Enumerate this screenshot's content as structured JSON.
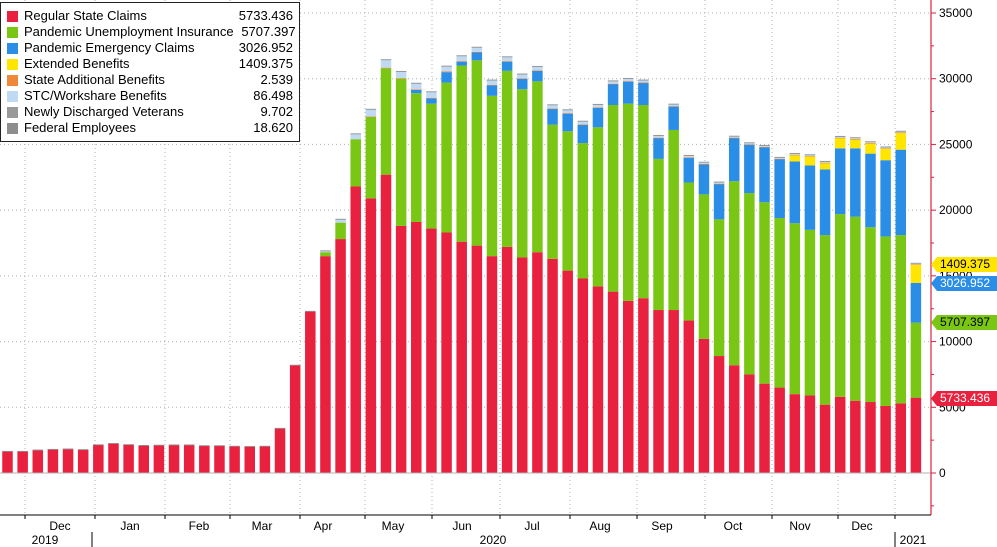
{
  "chart_data": {
    "type": "bar",
    "stacked": true,
    "title": "",
    "ylim": [
      -3000,
      35000
    ],
    "yticks": [
      0,
      5000,
      10000,
      15000,
      20000,
      25000,
      30000,
      35000
    ],
    "ytick_labels": [
      "0",
      "5000",
      "10000",
      "15000",
      "20000",
      "25000",
      "30000",
      "35000"
    ],
    "months": [
      "Dec",
      "Jan",
      "Feb",
      "Mar",
      "Apr",
      "May",
      "Jun",
      "Jul",
      "Aug",
      "Sep",
      "Oct",
      "Nov",
      "Dec"
    ],
    "years": [
      "2019",
      "2020",
      "2021"
    ],
    "series": [
      {
        "name": "Regular State Claims",
        "color": "#e8213f",
        "values": [
          1650,
          1650,
          1750,
          1800,
          1830,
          1780,
          2150,
          2250,
          2160,
          2100,
          2120,
          2140,
          2140,
          2080,
          2080,
          2040,
          2020,
          2040,
          3400,
          8200,
          12300,
          16500,
          17800,
          21800,
          20900,
          22700,
          18800,
          19100,
          18600,
          18300,
          17600,
          17300,
          16500,
          17200,
          16400,
          16800,
          16300,
          15400,
          14800,
          14200,
          13800,
          13100,
          13300,
          12400,
          12400,
          11600,
          10200,
          8900,
          8200,
          7500,
          6800,
          6500,
          6000,
          5900,
          5200,
          5800,
          5500,
          5400,
          5100,
          5300,
          5733
        ]
      },
      {
        "name": "Pandemic Unemployment Insurance",
        "color": "#7ac614",
        "values": [
          0,
          0,
          0,
          0,
          0,
          0,
          0,
          0,
          0,
          0,
          0,
          0,
          0,
          0,
          0,
          0,
          0,
          0,
          0,
          0,
          0,
          300,
          1250,
          3600,
          6200,
          8100,
          11200,
          9800,
          9500,
          11400,
          13400,
          14100,
          12200,
          13400,
          12800,
          13000,
          10200,
          10600,
          10300,
          12100,
          14200,
          15000,
          14700,
          11500,
          13700,
          10500,
          11000,
          10400,
          14000,
          13800,
          13800,
          12900,
          13000,
          12600,
          12900,
          13900,
          14000,
          13300,
          12900,
          12800,
          5707
        ]
      },
      {
        "name": "Pandemic Emergency Claims",
        "color": "#2a8ee6",
        "values": [
          0,
          0,
          0,
          0,
          0,
          0,
          0,
          0,
          0,
          0,
          0,
          0,
          0,
          0,
          0,
          0,
          0,
          0,
          0,
          0,
          0,
          0,
          0,
          0,
          0,
          0,
          0,
          250,
          400,
          800,
          300,
          600,
          800,
          700,
          800,
          800,
          1200,
          1350,
          1400,
          1500,
          1600,
          1700,
          1700,
          1600,
          1800,
          1900,
          2300,
          2700,
          3300,
          3700,
          4200,
          4500,
          4700,
          4900,
          5000,
          5000,
          5200,
          5600,
          5800,
          6500,
          3026
        ]
      },
      {
        "name": "Extended Benefits",
        "color": "#ffe500",
        "values": [
          0,
          0,
          0,
          0,
          0,
          0,
          0,
          0,
          0,
          0,
          0,
          0,
          0,
          0,
          0,
          0,
          0,
          0,
          0,
          0,
          0,
          0,
          0,
          0,
          0,
          0,
          0,
          0,
          0,
          0,
          0,
          0,
          0,
          0,
          0,
          0,
          0,
          0,
          0,
          0,
          0,
          0,
          0,
          0,
          0,
          0,
          0,
          0,
          0,
          0,
          0,
          0,
          500,
          700,
          500,
          800,
          700,
          800,
          900,
          1300,
          1409
        ]
      },
      {
        "name": "State Additional Benefits",
        "color": "#f0883a",
        "values": [
          0,
          0,
          0,
          0,
          0,
          0,
          0,
          0,
          0,
          0,
          0,
          0,
          0,
          0,
          0,
          0,
          0,
          0,
          0,
          0,
          0,
          0,
          0,
          0,
          20,
          40,
          50,
          50,
          50,
          50,
          40,
          40,
          40,
          40,
          30,
          30,
          30,
          30,
          20,
          20,
          20,
          10,
          10,
          10,
          10,
          10,
          10,
          10,
          10,
          10,
          10,
          10,
          10,
          10,
          10,
          10,
          10,
          10,
          10,
          10,
          3
        ]
      },
      {
        "name": "STC/Workshare Benefits",
        "color": "#bfdaf2",
        "values": [
          0,
          0,
          0,
          0,
          0,
          0,
          0,
          0,
          0,
          0,
          0,
          0,
          0,
          0,
          0,
          0,
          0,
          0,
          0,
          0,
          0,
          100,
          250,
          400,
          550,
          600,
          500,
          450,
          450,
          400,
          400,
          350,
          350,
          320,
          320,
          300,
          280,
          250,
          240,
          220,
          210,
          200,
          180,
          170,
          150,
          140,
          130,
          120,
          110,
          110,
          110,
          100,
          100,
          100,
          95,
          95,
          95,
          90,
          90,
          90,
          86
        ]
      },
      {
        "name": "Newly Discharged Veterans",
        "color": "#999999",
        "values": [
          10,
          10,
          10,
          10,
          10,
          10,
          10,
          10,
          10,
          10,
          10,
          10,
          10,
          10,
          10,
          10,
          10,
          10,
          10,
          15,
          15,
          15,
          15,
          15,
          15,
          15,
          15,
          15,
          15,
          15,
          15,
          15,
          15,
          15,
          15,
          15,
          15,
          15,
          15,
          15,
          15,
          15,
          15,
          15,
          15,
          15,
          15,
          15,
          15,
          15,
          15,
          15,
          15,
          15,
          15,
          15,
          15,
          15,
          15,
          15,
          10
        ]
      },
      {
        "name": "Federal Employees",
        "color": "#8e8e8e",
        "values": [
          20,
          20,
          20,
          20,
          20,
          20,
          20,
          20,
          20,
          20,
          20,
          20,
          20,
          20,
          20,
          20,
          20,
          20,
          20,
          20,
          20,
          25,
          25,
          25,
          25,
          25,
          25,
          25,
          25,
          25,
          25,
          25,
          25,
          25,
          25,
          25,
          25,
          25,
          25,
          25,
          25,
          25,
          25,
          25,
          25,
          25,
          25,
          25,
          25,
          25,
          25,
          25,
          25,
          25,
          25,
          25,
          25,
          25,
          25,
          25,
          19
        ]
      }
    ],
    "legend": [
      {
        "label": "Regular State Claims",
        "value": "5733.436",
        "color": "#e8213f"
      },
      {
        "label": "Pandemic Unemployment Insurance",
        "value": "5707.397",
        "color": "#7ac614"
      },
      {
        "label": "Pandemic Emergency Claims",
        "value": "3026.952",
        "color": "#2a8ee6"
      },
      {
        "label": "Extended Benefits",
        "value": "1409.375",
        "color": "#ffe500"
      },
      {
        "label": "State Additional Benefits",
        "value": "2.539",
        "color": "#f0883a"
      },
      {
        "label": "STC/Workshare Benefits",
        "value": "86.498",
        "color": "#bfdaf2"
      },
      {
        "label": "Newly Discharged Veterans",
        "value": "9.702",
        "color": "#999999"
      },
      {
        "label": "Federal Employees",
        "value": "18.620",
        "color": "#8e8e8e"
      }
    ],
    "last_value_badges": [
      {
        "value": "1409.375",
        "level": 1409.375,
        "color": "#ffe500",
        "text_color": "#000000"
      },
      {
        "value": "3026.952",
        "level": 3026.952,
        "color": "#2a8ee6",
        "text_color": "#ffffff"
      },
      {
        "value": "5707.397",
        "level": 5707.397,
        "color": "#7ac614",
        "text_color": "#000000"
      },
      {
        "value": "5733.436",
        "level": 5733.436,
        "color": "#e8213f",
        "text_color": "#ffffff"
      }
    ]
  }
}
